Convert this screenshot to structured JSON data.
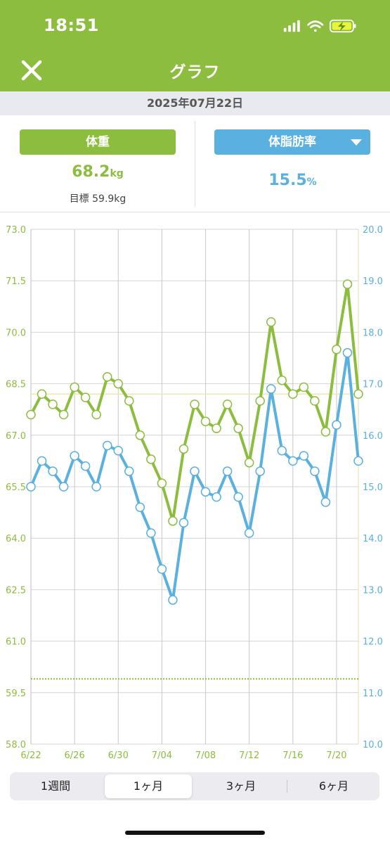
{
  "status": {
    "time": "18:51"
  },
  "header": {
    "title": "グラフ"
  },
  "date": "2025年07月22日",
  "summary": {
    "weight_label": "体重",
    "weight_value": "68.2",
    "weight_unit": "kg",
    "goal_text": "目標 59.9kg",
    "fat_label": "体脂肪率",
    "fat_value": "15.5",
    "fat_unit": "%"
  },
  "colors": {
    "accent_green": "#8cbd3e",
    "accent_blue": "#5ab0de",
    "goal_line": "#8cbd3e",
    "ref_line": "#f0e6b0"
  },
  "chart_data": {
    "type": "line",
    "x": [
      "6/22",
      "6/23",
      "6/24",
      "6/25",
      "6/26",
      "6/27",
      "6/28",
      "6/29",
      "6/30",
      "7/01",
      "7/02",
      "7/03",
      "7/04",
      "7/05",
      "7/06",
      "7/07",
      "7/08",
      "7/09",
      "7/10",
      "7/11",
      "7/12",
      "7/13",
      "7/14",
      "7/15",
      "7/16",
      "7/17",
      "7/18",
      "7/19",
      "7/20",
      "7/21",
      "7/22"
    ],
    "x_ticks": [
      "6/22",
      "6/26",
      "6/30",
      "7/04",
      "7/08",
      "7/12",
      "7/16",
      "7/20"
    ],
    "y_left_ticks": [
      "73.0",
      "71.5",
      "70.0",
      "68.5",
      "67.0",
      "65.5",
      "64.0",
      "62.5",
      "61.0",
      "59.5",
      "58.0"
    ],
    "y_right_ticks": [
      "20.0",
      "19.0",
      "18.0",
      "17.0",
      "16.0",
      "15.0",
      "14.0",
      "13.0",
      "12.0",
      "11.0",
      "10.0"
    ],
    "y_left_range": [
      58.0,
      73.0
    ],
    "y_right_range": [
      10.0,
      20.0
    ],
    "goal_value": 59.9,
    "reference_value": 68.2,
    "grid": true,
    "series": [
      {
        "axis": "left",
        "color": "#8cbd3e",
        "values": [
          67.6,
          68.2,
          67.9,
          67.6,
          68.4,
          68.1,
          67.6,
          68.7,
          68.5,
          68.0,
          67.0,
          66.3,
          65.6,
          64.5,
          66.6,
          67.9,
          67.4,
          67.2,
          67.9,
          67.2,
          66.2,
          68.0,
          70.3,
          68.6,
          68.2,
          68.4,
          68.0,
          67.1,
          69.5,
          71.4,
          68.2
        ]
      },
      {
        "axis": "right",
        "color": "#5ab0de",
        "values": [
          15.0,
          15.5,
          15.3,
          15.0,
          15.6,
          15.4,
          15.0,
          15.8,
          15.7,
          15.3,
          14.6,
          14.1,
          13.4,
          12.8,
          14.3,
          15.3,
          14.9,
          14.8,
          15.3,
          14.8,
          14.1,
          15.3,
          16.9,
          15.7,
          15.5,
          15.6,
          15.3,
          14.7,
          16.2,
          17.6,
          15.5
        ]
      }
    ]
  },
  "ranges": {
    "tabs": [
      "1週間",
      "1ヶ月",
      "3ヶ月",
      "6ヶ月"
    ],
    "active": "1ヶ月"
  }
}
